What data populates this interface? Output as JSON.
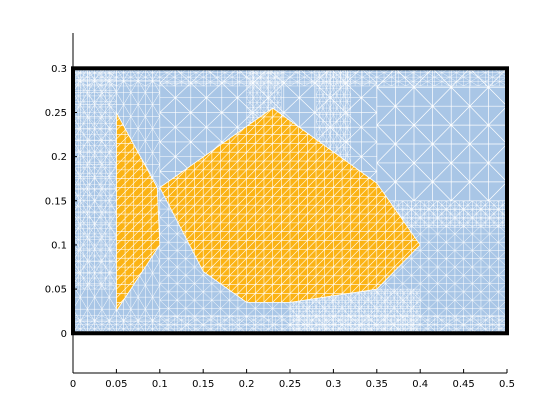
{
  "chart_data": {
    "type": "mesh",
    "xlim": [
      0,
      0.5
    ],
    "ylim": [
      -0.045,
      0.34
    ],
    "x_ticks": [
      0,
      0.05,
      0.1,
      0.15,
      0.2,
      0.25,
      0.3,
      0.35,
      0.4,
      0.45,
      0.5
    ],
    "x_tick_labels": [
      "0",
      "0.05",
      "0.1",
      "0.15",
      "0.2",
      "0.25",
      "0.3",
      "0.35",
      "0.4",
      "0.45",
      "0.5"
    ],
    "y_ticks": [
      0,
      0.05,
      0.1,
      0.15,
      0.2,
      0.25,
      0.3
    ],
    "y_tick_labels": [
      "0",
      "0.05",
      "0.1",
      "0.15",
      "0.2",
      "0.25",
      "0.3"
    ],
    "domain": {
      "x": [
        0,
        0.5
      ],
      "y": [
        0,
        0.3
      ]
    },
    "colors": {
      "fluid": "#a9c6e6",
      "body": "#fbb314",
      "mesh": "#ffffff",
      "border": "#000000"
    },
    "body": {
      "tail": [
        [
          0.05,
          0.25
        ],
        [
          0.097,
          0.165
        ],
        [
          0.1,
          0.1
        ],
        [
          0.05,
          0.025
        ]
      ],
      "main": [
        [
          0.23,
          0.255
        ],
        [
          0.35,
          0.17
        ],
        [
          0.4,
          0.1
        ],
        [
          0.35,
          0.05
        ],
        [
          0.25,
          0.035
        ],
        [
          0.2,
          0.035
        ],
        [
          0.15,
          0.07
        ],
        [
          0.1,
          0.165
        ]
      ]
    }
  }
}
